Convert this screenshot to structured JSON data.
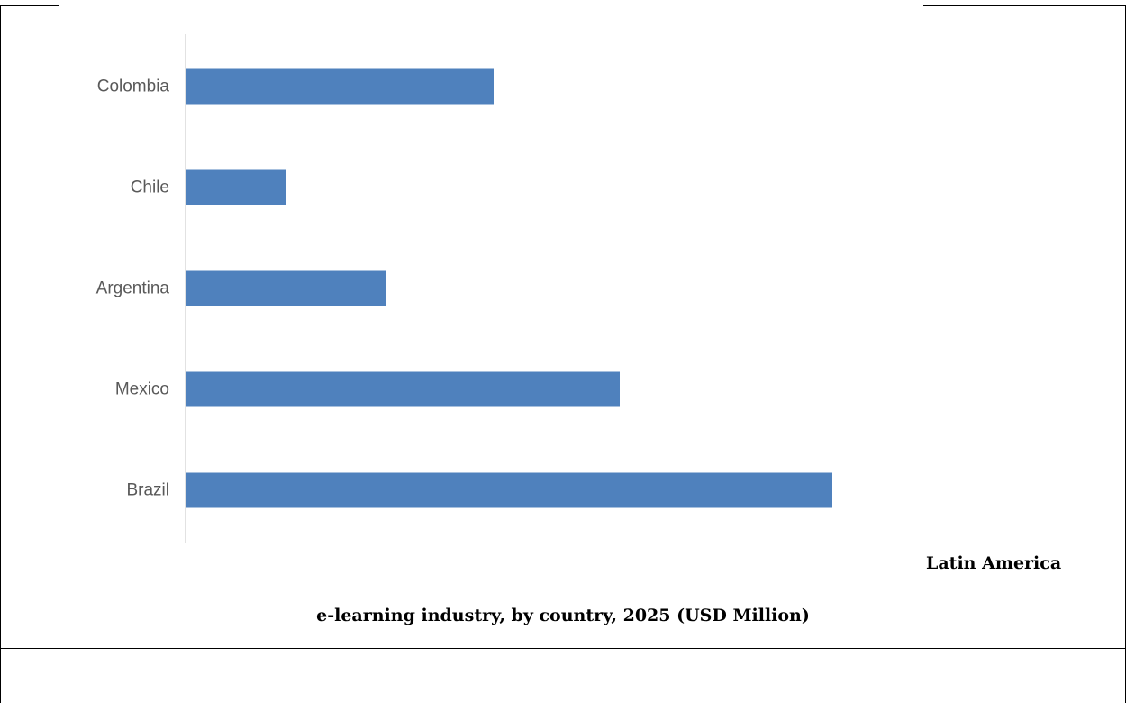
{
  "chart_data": {
    "type": "bar",
    "orientation": "horizontal",
    "categories": [
      "Colombia",
      "Chile",
      "Argentina",
      "Mexico",
      "Brazil"
    ],
    "values": [
      342,
      111,
      223,
      482,
      718
    ],
    "xlim": [
      0,
      800
    ],
    "grid": false,
    "legend": "none",
    "caption_region": "Latin America",
    "caption_title": "e-learning industry, by country, 2025 (USD Million)"
  },
  "colors": {
    "bar": "#4f81bd",
    "axis": "#d9d9d9",
    "tick_label": "#595959"
  }
}
